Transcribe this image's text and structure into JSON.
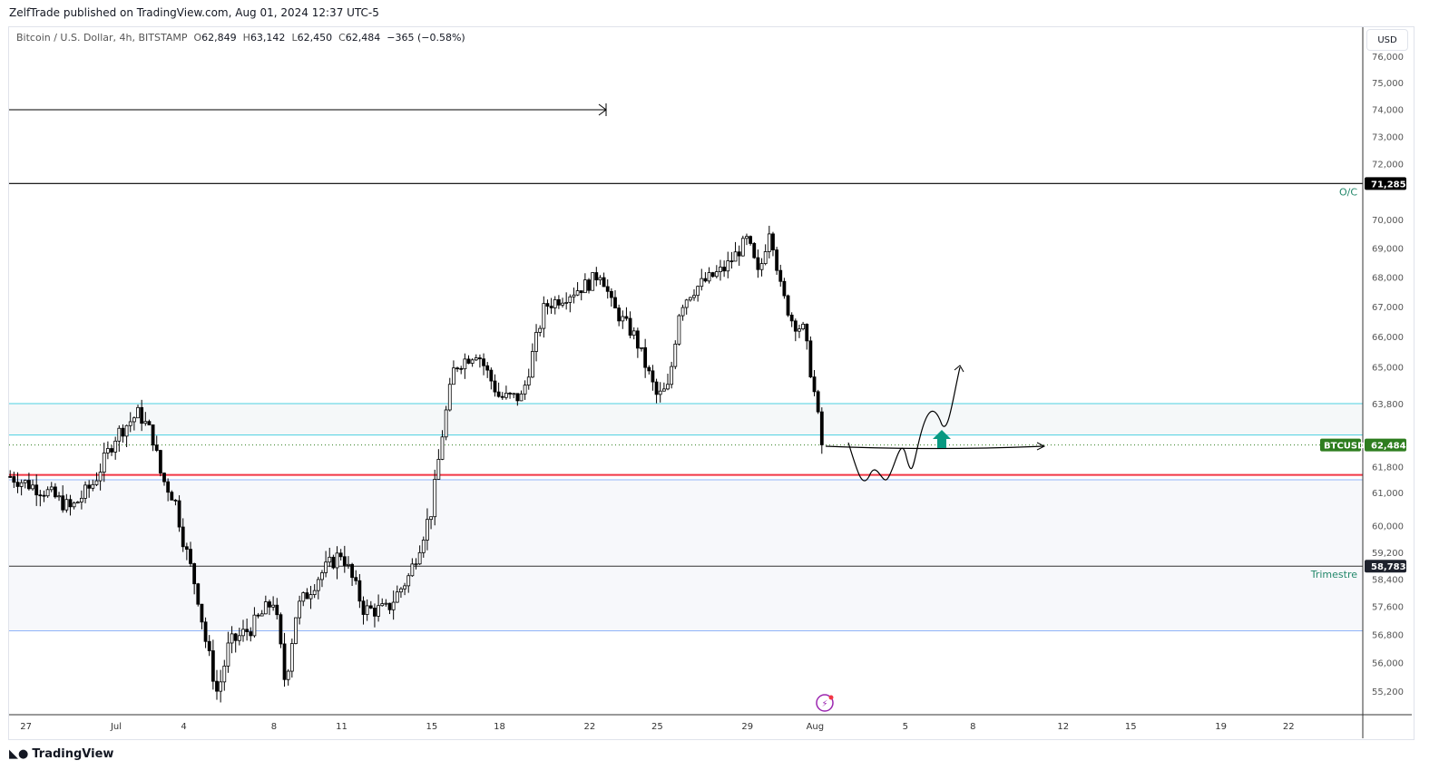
{
  "header": {
    "published": "ZelfTrade published on TradingView.com, Aug 01, 2024 12:37 UTC-5"
  },
  "legend": {
    "symbol": "Bitcoin / U.S. Dollar, 4h, BITSTAMP",
    "o_label": "O",
    "open": "62,849",
    "h_label": "H",
    "high": "63,142",
    "l_label": "L",
    "low": "62,450",
    "c_label": "C",
    "close": "62,484",
    "change": "−365 (−0.58%)"
  },
  "currency": "USD",
  "footer": {
    "brand": "TradingView"
  },
  "labels": {
    "oc": "O/C",
    "trimestre": "Trimestre",
    "ticker": "BTCUSD"
  },
  "colors": {
    "up": "#ffffff",
    "down": "#000000",
    "red_line": "#f23645",
    "cyan": "#4dd0e1",
    "blue": "#90b4f8",
    "green_tag": "#2e7d1f",
    "arrow": "#089981"
  },
  "chart_data": {
    "type": "candlestick",
    "title": "Bitcoin / U.S. Dollar, 4h, BITSTAMP",
    "scale": "log",
    "ylim": [
      54900,
      76800
    ],
    "y_ticks": [
      "76,000",
      "75,000",
      "74,000",
      "73,000",
      "72,000",
      "70,000",
      "69,000",
      "68,000",
      "67,000",
      "66,000",
      "65,000",
      "63,800",
      "61,800",
      "61,000",
      "60,000",
      "59,200",
      "58,400",
      "57,600",
      "56,800",
      "56,000",
      "55,200"
    ],
    "y_tick_values": [
      76000,
      75000,
      74000,
      73000,
      72000,
      70000,
      69000,
      68000,
      67000,
      66000,
      65000,
      63800,
      61800,
      61000,
      60000,
      59200,
      58400,
      57600,
      56800,
      56000,
      55200
    ],
    "x_ticks": [
      "27",
      "Jul",
      "4",
      "8",
      "11",
      "15",
      "18",
      "22",
      "25",
      "29",
      "Aug",
      "5",
      "8",
      "12",
      "15",
      "19",
      "22"
    ],
    "x_tick_days": [
      -4,
      0,
      3,
      7,
      10,
      14,
      17,
      21,
      24,
      28,
      31,
      35,
      38,
      42,
      45,
      49,
      52
    ],
    "price_path_days": [
      -4.7,
      -3,
      -2,
      -1,
      0,
      1,
      1.6,
      2,
      2.6,
      3,
      3.6,
      4,
      4.5,
      5,
      6,
      7,
      7.5,
      8,
      9,
      10,
      11,
      12,
      13,
      14,
      14.5,
      15,
      16,
      17,
      18,
      19,
      20,
      21,
      21.5,
      22,
      23,
      24,
      24.5,
      25,
      25.5,
      26,
      27,
      28,
      28.5,
      29,
      29.5,
      30,
      30.5,
      31,
      31.3
    ],
    "price_path_values": [
      61500,
      61000,
      60500,
      61300,
      62800,
      63500,
      62800,
      61500,
      60800,
      59500,
      58000,
      56500,
      55100,
      56500,
      57000,
      57800,
      55400,
      57500,
      58500,
      59200,
      57500,
      57500,
      58500,
      60500,
      63000,
      65000,
      65500,
      64000,
      64000,
      67000,
      67400,
      67800,
      68200,
      67000,
      66000,
      64000,
      64300,
      67000,
      67500,
      67800,
      68300,
      69300,
      68000,
      69800,
      67500,
      66500,
      66200,
      64000,
      62484
    ],
    "levels": [
      {
        "name": "O/C",
        "value": 71285,
        "label": "71,285"
      },
      {
        "name": "zone-top",
        "value": 63800
      },
      {
        "name": "zone-bottom",
        "value": 62800
      },
      {
        "name": "last-price",
        "value": 62484,
        "label": "62,484"
      },
      {
        "name": "red-level",
        "value": 61550
      },
      {
        "name": "blue-level",
        "value": 61400
      },
      {
        "name": "Trimestre",
        "value": 58783,
        "label": "58,783"
      },
      {
        "name": "lower-blue",
        "value": 56900
      }
    ]
  }
}
